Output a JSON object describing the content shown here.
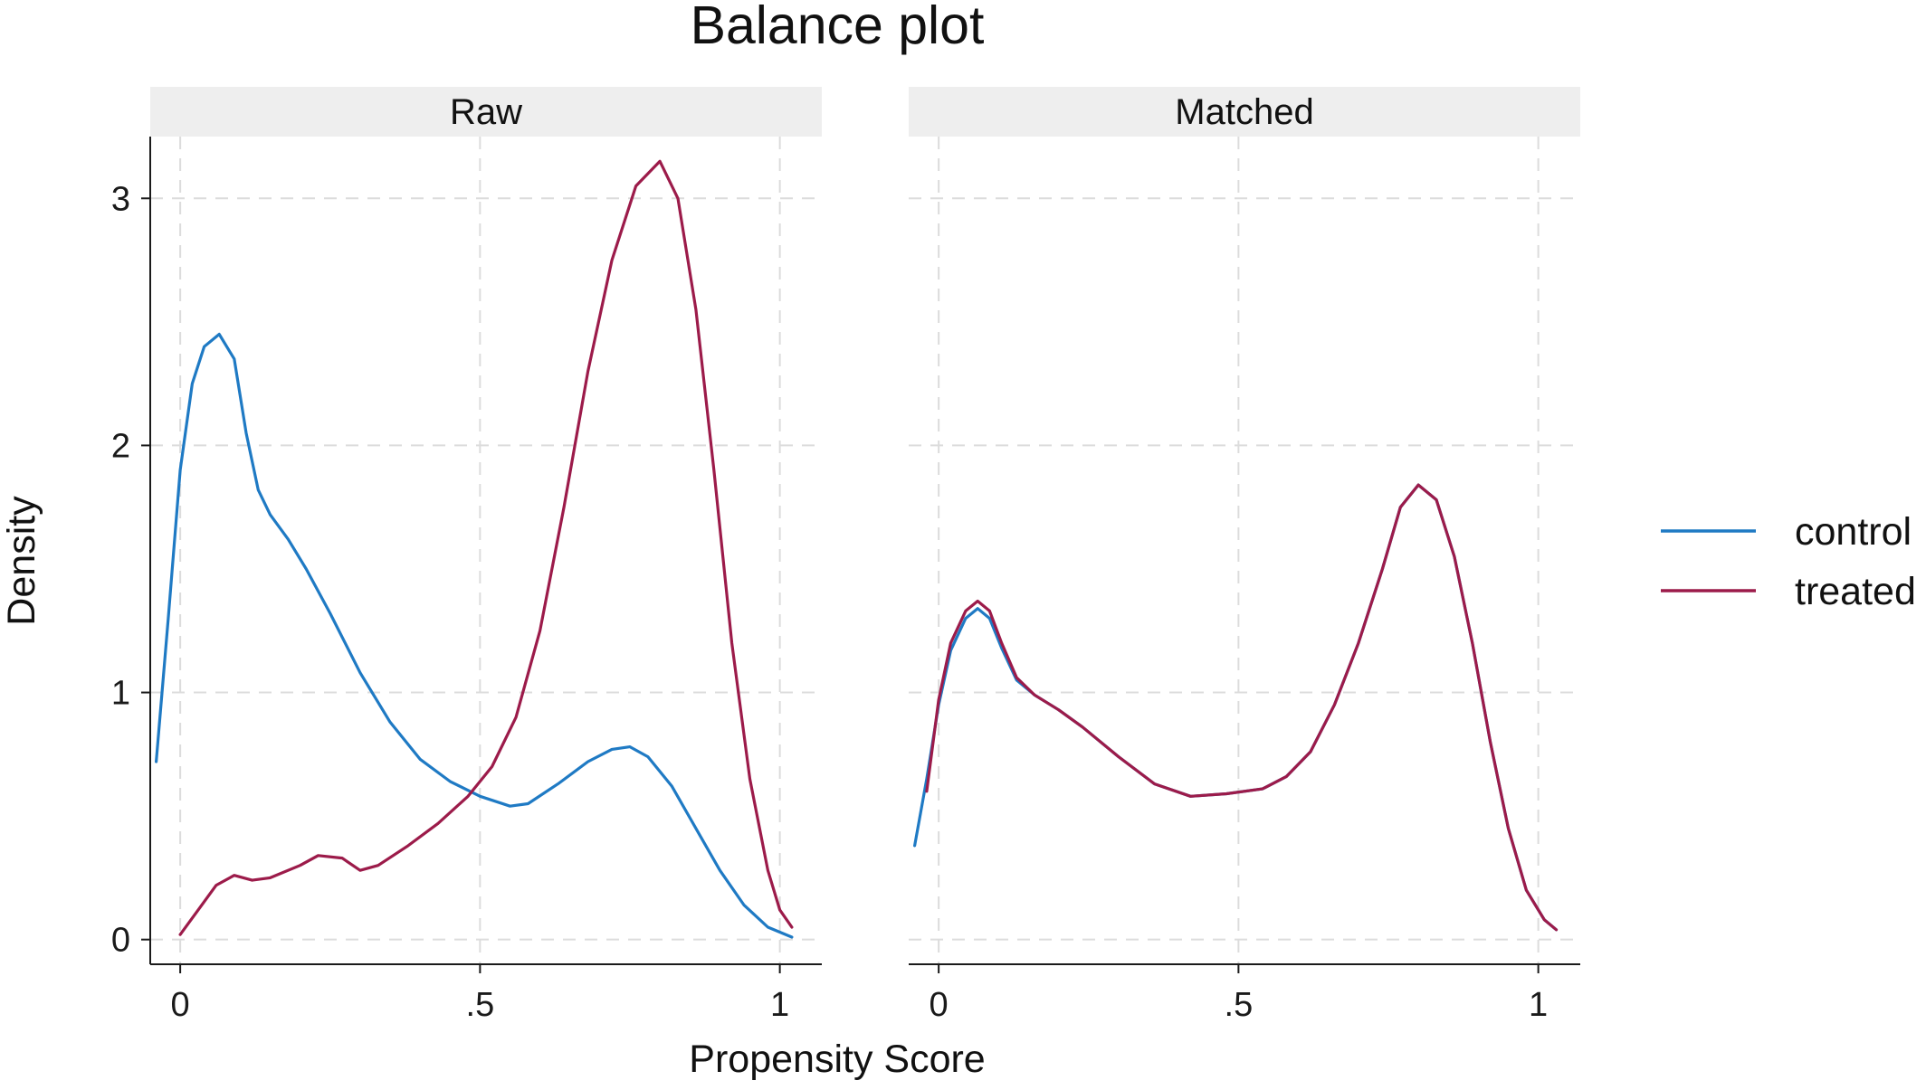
{
  "chart_data": {
    "type": "line",
    "title": "Balance plot",
    "xlabel": "Propensity Score",
    "ylabel": "Density",
    "xlim": [
      -0.05,
      1.07
    ],
    "ylim": [
      -0.1,
      3.25
    ],
    "xticks": [
      0,
      0.5,
      1
    ],
    "xtick_labels": [
      "0",
      ".5",
      "1"
    ],
    "yticks": [
      0,
      1,
      2,
      3
    ],
    "ytick_labels": [
      "0",
      "1",
      "2",
      "3"
    ],
    "grid": true,
    "legend": {
      "position": "right",
      "entries": [
        {
          "name": "control",
          "color": "#1f7ac4"
        },
        {
          "name": "treated",
          "color": "#9c1b4a"
        }
      ]
    },
    "panels": [
      {
        "label": "Raw",
        "series": [
          {
            "name": "control",
            "color": "#1f7ac4",
            "points": [
              [
                -0.04,
                0.72
              ],
              [
                -0.02,
                1.3
              ],
              [
                0,
                1.9
              ],
              [
                0.02,
                2.25
              ],
              [
                0.04,
                2.4
              ],
              [
                0.065,
                2.45
              ],
              [
                0.09,
                2.35
              ],
              [
                0.11,
                2.05
              ],
              [
                0.13,
                1.82
              ],
              [
                0.15,
                1.72
              ],
              [
                0.18,
                1.62
              ],
              [
                0.21,
                1.5
              ],
              [
                0.25,
                1.32
              ],
              [
                0.3,
                1.08
              ],
              [
                0.35,
                0.88
              ],
              [
                0.4,
                0.73
              ],
              [
                0.45,
                0.64
              ],
              [
                0.5,
                0.58
              ],
              [
                0.55,
                0.54
              ],
              [
                0.58,
                0.55
              ],
              [
                0.63,
                0.63
              ],
              [
                0.68,
                0.72
              ],
              [
                0.72,
                0.77
              ],
              [
                0.75,
                0.78
              ],
              [
                0.78,
                0.74
              ],
              [
                0.82,
                0.62
              ],
              [
                0.86,
                0.45
              ],
              [
                0.9,
                0.28
              ],
              [
                0.94,
                0.14
              ],
              [
                0.98,
                0.05
              ],
              [
                1.02,
                0.01
              ]
            ]
          },
          {
            "name": "treated",
            "color": "#9c1b4a",
            "points": [
              [
                0,
                0.02
              ],
              [
                0.03,
                0.12
              ],
              [
                0.06,
                0.22
              ],
              [
                0.09,
                0.26
              ],
              [
                0.12,
                0.24
              ],
              [
                0.15,
                0.25
              ],
              [
                0.2,
                0.3
              ],
              [
                0.23,
                0.34
              ],
              [
                0.27,
                0.33
              ],
              [
                0.3,
                0.28
              ],
              [
                0.33,
                0.3
              ],
              [
                0.38,
                0.38
              ],
              [
                0.43,
                0.47
              ],
              [
                0.48,
                0.58
              ],
              [
                0.52,
                0.7
              ],
              [
                0.56,
                0.9
              ],
              [
                0.6,
                1.25
              ],
              [
                0.64,
                1.75
              ],
              [
                0.68,
                2.3
              ],
              [
                0.72,
                2.75
              ],
              [
                0.76,
                3.05
              ],
              [
                0.8,
                3.15
              ],
              [
                0.83,
                3.0
              ],
              [
                0.86,
                2.55
              ],
              [
                0.89,
                1.9
              ],
              [
                0.92,
                1.2
              ],
              [
                0.95,
                0.65
              ],
              [
                0.98,
                0.28
              ],
              [
                1.0,
                0.12
              ],
              [
                1.02,
                0.05
              ]
            ]
          }
        ]
      },
      {
        "label": "Matched",
        "series": [
          {
            "name": "control",
            "color": "#1f7ac4",
            "points": [
              [
                -0.04,
                0.38
              ],
              [
                -0.02,
                0.65
              ],
              [
                0,
                0.95
              ],
              [
                0.02,
                1.17
              ],
              [
                0.045,
                1.3
              ],
              [
                0.065,
                1.34
              ],
              [
                0.085,
                1.3
              ],
              [
                0.105,
                1.18
              ],
              [
                0.13,
                1.05
              ],
              [
                0.16,
                0.99
              ],
              [
                0.2,
                0.93
              ],
              [
                0.24,
                0.86
              ],
              [
                0.3,
                0.74
              ],
              [
                0.36,
                0.63
              ],
              [
                0.42,
                0.58
              ],
              [
                0.48,
                0.59
              ],
              [
                0.54,
                0.61
              ],
              [
                0.58,
                0.66
              ],
              [
                0.62,
                0.76
              ],
              [
                0.66,
                0.95
              ],
              [
                0.7,
                1.2
              ],
              [
                0.74,
                1.5
              ],
              [
                0.77,
                1.75
              ],
              [
                0.8,
                1.84
              ],
              [
                0.83,
                1.78
              ],
              [
                0.86,
                1.55
              ],
              [
                0.89,
                1.2
              ],
              [
                0.92,
                0.8
              ],
              [
                0.95,
                0.45
              ],
              [
                0.98,
                0.2
              ],
              [
                1.01,
                0.08
              ],
              [
                1.03,
                0.04
              ]
            ]
          },
          {
            "name": "treated",
            "color": "#9c1b4a",
            "points": [
              [
                -0.02,
                0.6
              ],
              [
                0,
                0.97
              ],
              [
                0.02,
                1.2
              ],
              [
                0.045,
                1.33
              ],
              [
                0.065,
                1.37
              ],
              [
                0.085,
                1.33
              ],
              [
                0.105,
                1.2
              ],
              [
                0.13,
                1.06
              ],
              [
                0.16,
                0.99
              ],
              [
                0.2,
                0.93
              ],
              [
                0.24,
                0.86
              ],
              [
                0.3,
                0.74
              ],
              [
                0.36,
                0.63
              ],
              [
                0.42,
                0.58
              ],
              [
                0.48,
                0.59
              ],
              [
                0.54,
                0.61
              ],
              [
                0.58,
                0.66
              ],
              [
                0.62,
                0.76
              ],
              [
                0.66,
                0.95
              ],
              [
                0.7,
                1.2
              ],
              [
                0.74,
                1.5
              ],
              [
                0.77,
                1.75
              ],
              [
                0.8,
                1.84
              ],
              [
                0.83,
                1.78
              ],
              [
                0.86,
                1.55
              ],
              [
                0.89,
                1.2
              ],
              [
                0.92,
                0.8
              ],
              [
                0.95,
                0.45
              ],
              [
                0.98,
                0.2
              ],
              [
                1.01,
                0.08
              ],
              [
                1.03,
                0.04
              ]
            ]
          }
        ]
      }
    ]
  }
}
